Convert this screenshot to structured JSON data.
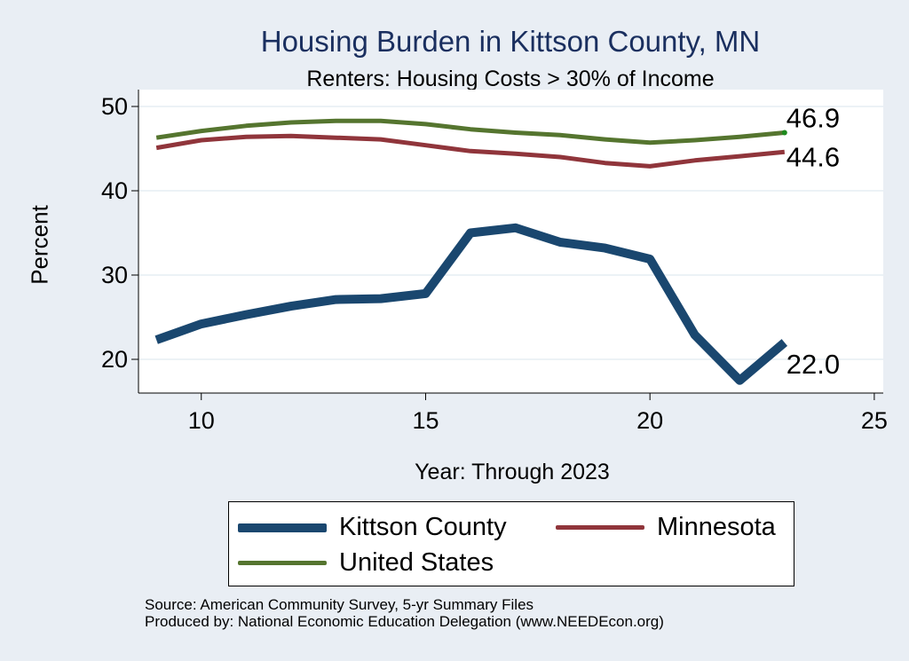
{
  "chart_data": {
    "type": "line",
    "title": "Housing Burden in Kittson County, MN",
    "subtitle": "Renters: Housing Costs > 30% of Income",
    "xlabel": "Year: Through 2023",
    "ylabel": "Percent",
    "xlim": [
      8.6,
      25.2
    ],
    "ylim": [
      16,
      52
    ],
    "xticks": [
      10,
      15,
      20,
      25
    ],
    "yticks": [
      20,
      30,
      40,
      50
    ],
    "x": [
      9,
      10,
      11,
      12,
      13,
      14,
      15,
      16,
      17,
      18,
      19,
      20,
      21,
      22,
      23
    ],
    "series": [
      {
        "name": "Kittson County",
        "color": "#1a476f",
        "values": [
          22.3,
          24.2,
          25.3,
          26.3,
          27.1,
          27.2,
          27.8,
          35.0,
          35.6,
          33.9,
          33.2,
          31.9,
          22.9,
          17.5,
          22.0
        ],
        "end_label": "22.0"
      },
      {
        "name": "Minnesota",
        "color": "#90353b",
        "values": [
          45.1,
          46.0,
          46.4,
          46.5,
          46.3,
          46.1,
          45.4,
          44.7,
          44.4,
          44.0,
          43.3,
          42.9,
          43.6,
          44.1,
          44.6
        ],
        "end_label": "44.6"
      },
      {
        "name": "United States",
        "color": "#55752f",
        "values": [
          46.3,
          47.1,
          47.7,
          48.1,
          48.3,
          48.3,
          47.9,
          47.3,
          46.9,
          46.6,
          46.1,
          45.7,
          46.0,
          46.4,
          46.9
        ],
        "end_label": "46.9"
      }
    ],
    "grid": true,
    "legend_position": "bottom"
  },
  "legend": {
    "kittson": "Kittson County",
    "minnesota": "Minnesota",
    "us": "United States"
  },
  "source_line1": "Source: American Community Survey, 5-yr Summary Files",
  "source_line2": "Produced by: National Economic Education Delegation (www.NEEDEcon.org)"
}
